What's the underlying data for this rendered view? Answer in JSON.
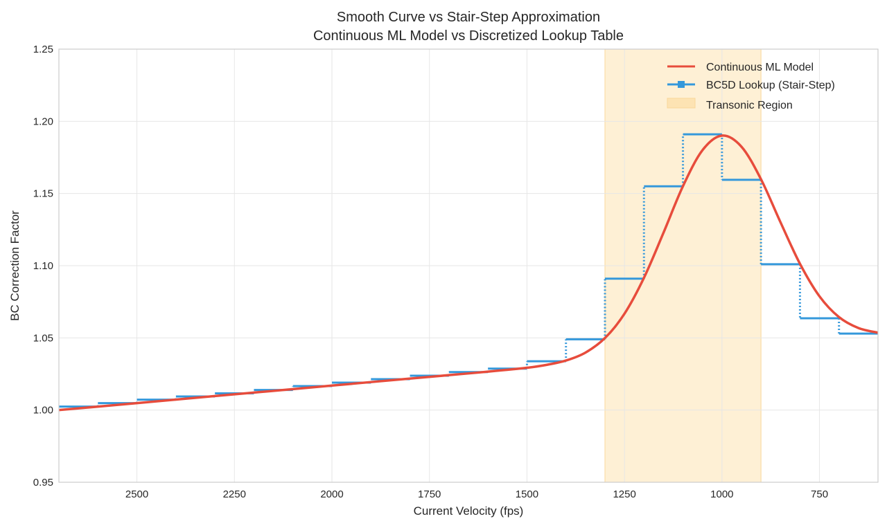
{
  "chart_data": {
    "type": "line",
    "title": "Smooth Curve vs Stair-Step Approximation",
    "subtitle": "Continuous ML Model vs Discretized Lookup Table",
    "xlabel": "Current Velocity (fps)",
    "ylabel": "BC Correction Factor",
    "xlim": [
      2700,
      600
    ],
    "x_reversed": true,
    "ylim": [
      0.95,
      1.25
    ],
    "xticks": [
      2500,
      2250,
      2000,
      1750,
      1500,
      1250,
      1000,
      750
    ],
    "yticks": [
      "0.95",
      "1.00",
      "1.05",
      "1.10",
      "1.15",
      "1.20",
      "1.25"
    ],
    "grid": true,
    "legend_placement": "top-right",
    "shaded_region": {
      "name": "Transonic Region",
      "x_from": 1300,
      "x_to": 900,
      "color": "#fde3b3"
    },
    "series": [
      {
        "name": "Continuous ML Model",
        "color": "#e74c3c",
        "x": [
          2700,
          2500,
          2300,
          2100,
          1900,
          1700,
          1600,
          1500,
          1450,
          1400,
          1350,
          1300,
          1250,
          1200,
          1150,
          1100,
          1050,
          1000,
          950,
          900,
          850,
          800,
          750,
          700,
          650,
          600
        ],
        "y": [
          1.0,
          1.0048,
          1.0097,
          1.0145,
          1.0194,
          1.0242,
          1.0266,
          1.0293,
          1.0313,
          1.0343,
          1.0398,
          1.0499,
          1.0667,
          1.0916,
          1.1228,
          1.1551,
          1.18,
          1.1901,
          1.1824,
          1.1599,
          1.1301,
          1.1013,
          1.0788,
          1.0644,
          1.0568,
          1.0536
        ]
      },
      {
        "name": "BC5D Lookup (Stair-Step)",
        "color": "#3498db",
        "step_edges": [
          2700,
          2600,
          2500,
          2400,
          2300,
          2200,
          2100,
          2000,
          1900,
          1800,
          1700,
          1600,
          1500,
          1400,
          1300,
          1200,
          1100,
          1000,
          900,
          800,
          700,
          600
        ],
        "y": [
          1.0024,
          1.0048,
          1.0072,
          1.0094,
          1.0116,
          1.0139,
          1.0166,
          1.019,
          1.0214,
          1.0238,
          1.0263,
          1.0287,
          1.0338,
          1.049,
          1.091,
          1.155,
          1.191,
          1.1595,
          1.101,
          1.0636,
          1.053
        ]
      }
    ]
  }
}
